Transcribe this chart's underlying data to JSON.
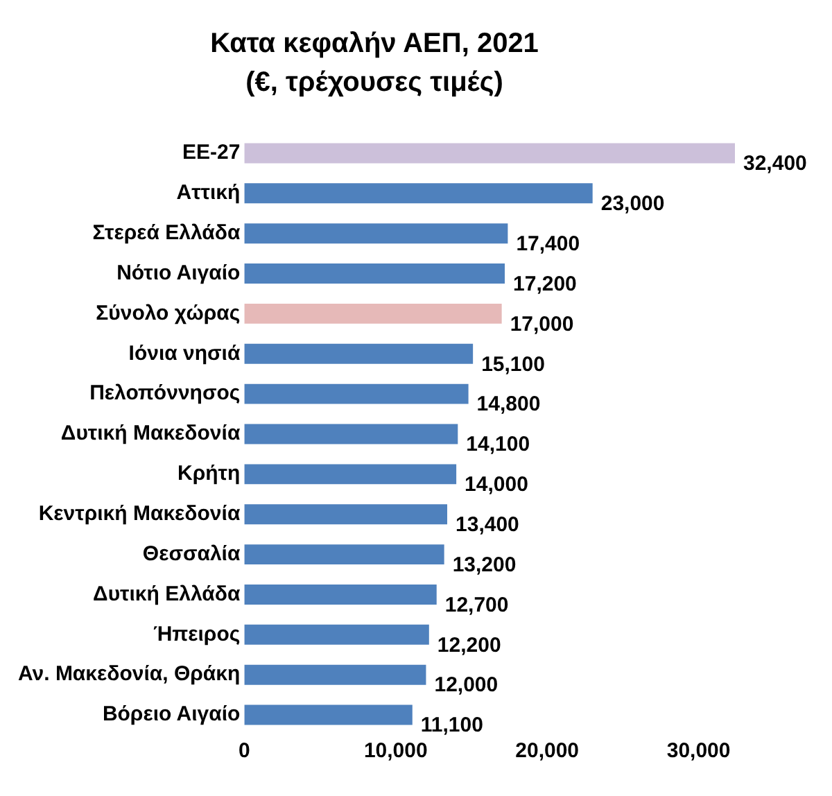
{
  "chart_data": {
    "type": "bar",
    "orientation": "horizontal",
    "title": "Κατα κεφαλήν ΑΕΠ, 2021",
    "subtitle": "(€, τρέχουσες τιμές)",
    "categories": [
      "ΕΕ-27",
      "Αττική",
      "Στερεά Ελλάδα",
      "Νότιο Αιγαίο",
      "Σύνολο χώρας",
      "Ιόνια νησιά",
      "Πελοπόννησος",
      "Δυτική Μακεδονία",
      "Κρήτη",
      "Κεντρική Μακεδονία",
      "Θεσσαλία",
      "Δυτική Ελλάδα",
      "Ήπειρος",
      "Αν. Μακεδονία, Θράκη",
      "Βόρειο Αιγαίο"
    ],
    "values": [
      32400,
      23000,
      17400,
      17200,
      17000,
      15100,
      14800,
      14100,
      14000,
      13400,
      13200,
      12700,
      12200,
      12000,
      11100
    ],
    "value_labels": [
      "32,400",
      "23,000",
      "17,400",
      "17,200",
      "17,000",
      "15,100",
      "14,800",
      "14,100",
      "14,000",
      "13,400",
      "13,200",
      "12,700",
      "12,200",
      "12,000",
      "11,100"
    ],
    "colors": [
      "#ccc0da",
      "#4f81bd",
      "#4f81bd",
      "#4f81bd",
      "#e6b9b8",
      "#4f81bd",
      "#4f81bd",
      "#4f81bd",
      "#4f81bd",
      "#4f81bd",
      "#4f81bd",
      "#4f81bd",
      "#4f81bd",
      "#4f81bd",
      "#4f81bd"
    ],
    "xlim": [
      0,
      32400
    ],
    "xticks": [
      0,
      {
        "value": 10000,
        "label": "10,000"
      },
      {
        "value": 20000,
        "label": "20,000"
      },
      {
        "value": 30000,
        "label": "30,000"
      }
    ],
    "grid": false,
    "legend": false
  }
}
